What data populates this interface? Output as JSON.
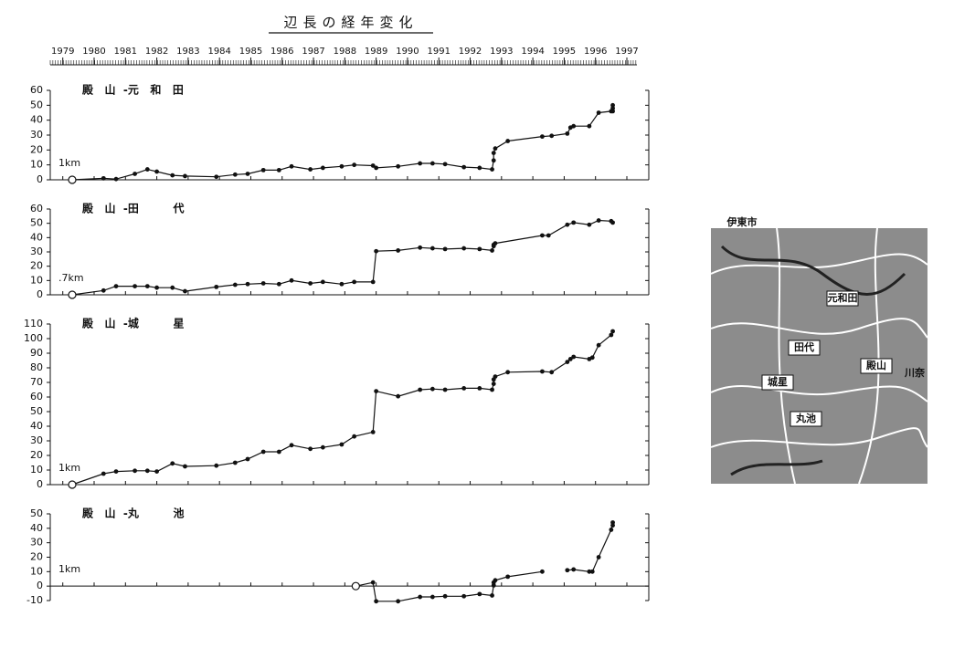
{
  "title": "辺長の経年変化",
  "chart_data": [
    {
      "type": "line",
      "title": "殿   山  -元   和   田",
      "annotation": "1km",
      "xlim": [
        1978.6,
        1997.7
      ],
      "xticks": [
        1979,
        1980,
        1981,
        1982,
        1983,
        1984,
        1985,
        1986,
        1987,
        1988,
        1989,
        1990,
        1991,
        1992,
        1993,
        1994,
        1995,
        1996,
        1997
      ],
      "ylim": [
        0,
        60
      ],
      "yticks": [
        0,
        10,
        20,
        30,
        40,
        50,
        60
      ],
      "color": "#111111",
      "x": [
        1979.3,
        1980.3,
        1980.7,
        1981.3,
        1981.7,
        1982.0,
        1982.5,
        1982.9,
        1983.9,
        1984.5,
        1984.9,
        1985.4,
        1985.9,
        1986.3,
        1986.9,
        1987.3,
        1987.9,
        1988.3,
        1988.9,
        1989.0,
        1989.7,
        1990.4,
        1990.8,
        1991.2,
        1991.8,
        1992.3,
        1992.7,
        1992.75,
        1992.75,
        1992.8,
        1993.2,
        1994.3,
        1994.6,
        1995.1,
        1995.2,
        1995.3,
        1995.8,
        1996.1,
        1996.5,
        1996.55,
        1996.55,
        1996.55
      ],
      "values": [
        0,
        1,
        0.5,
        4,
        7,
        5.5,
        3,
        2.5,
        2,
        3.5,
        4,
        6.5,
        6.5,
        9,
        7,
        8,
        9,
        10,
        9.5,
        8,
        9,
        11,
        11,
        10.5,
        8.5,
        8,
        7,
        13,
        18,
        21,
        26,
        29,
        29.5,
        31,
        35,
        36,
        36,
        45,
        46,
        50,
        48,
        46
      ]
    },
    {
      "type": "line",
      "title": "殿   山  -田         代",
      "annotation": ".7km",
      "xlim": [
        1978.6,
        1997.7
      ],
      "xticks": [
        1979,
        1980,
        1981,
        1982,
        1983,
        1984,
        1985,
        1986,
        1987,
        1988,
        1989,
        1990,
        1991,
        1992,
        1993,
        1994,
        1995,
        1996,
        1997
      ],
      "ylim": [
        0,
        60
      ],
      "yticks": [
        0,
        10,
        20,
        30,
        40,
        50,
        60
      ],
      "color": "#111111",
      "x": [
        1979.3,
        1980.3,
        1980.7,
        1981.3,
        1981.7,
        1982.0,
        1982.5,
        1982.9,
        1983.9,
        1984.5,
        1984.9,
        1985.4,
        1985.9,
        1986.3,
        1986.9,
        1987.3,
        1987.9,
        1988.3,
        1988.9,
        1989.0,
        1989.7,
        1990.4,
        1990.8,
        1991.2,
        1991.8,
        1992.3,
        1992.7,
        1992.75,
        1992.75,
        1992.8,
        1994.3,
        1994.5,
        1995.1,
        1995.3,
        1995.8,
        1996.1,
        1996.5,
        1996.55
      ],
      "values": [
        0,
        3,
        6,
        6,
        6,
        5,
        5,
        2.5,
        5.5,
        7,
        7.5,
        8,
        7.5,
        10,
        8,
        9,
        7.5,
        9,
        9,
        30.5,
        31,
        33,
        32.5,
        32,
        32.5,
        32,
        31,
        34,
        35,
        36,
        41.5,
        41.5,
        49,
        50.5,
        49,
        52,
        51.5,
        50.5
      ]
    },
    {
      "type": "line",
      "title": "殿   山  -城         星",
      "annotation": "1km",
      "xlim": [
        1978.6,
        1997.7
      ],
      "xticks": [
        1979,
        1980,
        1981,
        1982,
        1983,
        1984,
        1985,
        1986,
        1987,
        1988,
        1989,
        1990,
        1991,
        1992,
        1993,
        1994,
        1995,
        1996,
        1997
      ],
      "ylim": [
        0,
        110
      ],
      "yticks": [
        0,
        10,
        20,
        30,
        40,
        50,
        60,
        70,
        80,
        90,
        100,
        110
      ],
      "color": "#111111",
      "x": [
        1979.3,
        1980.3,
        1980.7,
        1981.3,
        1981.7,
        1982.0,
        1982.5,
        1982.9,
        1983.9,
        1984.5,
        1984.9,
        1985.4,
        1985.9,
        1986.3,
        1986.9,
        1987.3,
        1987.9,
        1988.3,
        1988.9,
        1989.0,
        1989.7,
        1990.4,
        1990.8,
        1991.2,
        1991.8,
        1992.3,
        1992.7,
        1992.75,
        1992.75,
        1992.8,
        1993.2,
        1994.3,
        1994.6,
        1995.1,
        1995.2,
        1995.3,
        1995.8,
        1995.9,
        1996.1,
        1996.5,
        1996.55
      ],
      "values": [
        0,
        7.5,
        9,
        9.5,
        9.5,
        9,
        14.5,
        12.5,
        13,
        15,
        17.5,
        22.5,
        22.5,
        27,
        24.5,
        25.5,
        27.5,
        33,
        36,
        64,
        60.5,
        65,
        65.5,
        65,
        66,
        66,
        65,
        69,
        72,
        74,
        77,
        77.5,
        77,
        84,
        86,
        87.5,
        86,
        87,
        95.5,
        102.5,
        105
      ]
    },
    {
      "type": "line",
      "title": "殿   山  -丸         池",
      "annotation": "1km",
      "xlim": [
        1978.6,
        1997.7
      ],
      "xticks": [
        1979,
        1980,
        1981,
        1982,
        1983,
        1984,
        1985,
        1986,
        1987,
        1988,
        1989,
        1990,
        1991,
        1992,
        1993,
        1994,
        1995,
        1996,
        1997
      ],
      "ylim": [
        -10,
        50
      ],
      "yticks": [
        -10,
        0,
        10,
        20,
        30,
        40,
        50
      ],
      "color": "#111111",
      "x": [
        1988.35,
        1988.9,
        1989.0,
        1989.7,
        1990.4,
        1990.8,
        1991.2,
        1991.8,
        1992.3,
        1992.7,
        1992.75,
        1992.75,
        1992.8,
        1993.2,
        1994.3,
        1994.7,
        1995.1,
        1995.3,
        1995.8,
        1995.9,
        1996.1,
        1996.5,
        1996.55,
        1996.55
      ],
      "values": [
        0,
        2.5,
        -10.5,
        -10.5,
        -7.5,
        -7.5,
        -7,
        -7,
        -5.5,
        -6.5,
        0.5,
        2.5,
        4,
        6.5,
        10,
        null,
        11,
        11.5,
        10,
        10,
        20,
        39,
        44,
        42
      ]
    }
  ],
  "map": {
    "labels": [
      "伊東市",
      "元和田",
      "田代",
      "殿山",
      "城星",
      "丸池",
      "川奈"
    ]
  }
}
